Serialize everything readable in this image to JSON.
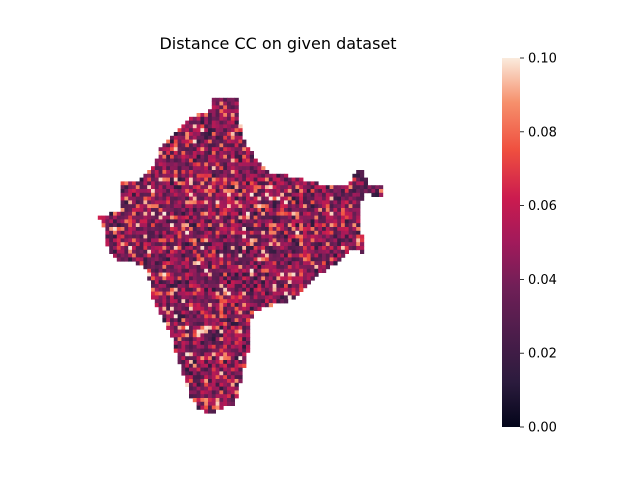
{
  "chart_data": {
    "type": "heatmap",
    "title": "Distance CC on given dataset",
    "xlabel": "",
    "ylabel": "",
    "axes_visible": false,
    "grid": false,
    "colormap": "rocket",
    "colorbar": {
      "range": [
        0.0,
        0.1
      ],
      "position": "right",
      "ticks": [
        "0.00",
        "0.02",
        "0.04",
        "0.06",
        "0.08",
        "0.10"
      ],
      "tick_values": [
        0.0,
        0.02,
        0.04,
        0.06,
        0.08,
        0.1
      ]
    },
    "value_distribution": {
      "typical_range": [
        0.02,
        0.06
      ],
      "peak_range": [
        0.08,
        0.1
      ],
      "masked": "outside the region (blank)"
    }
  }
}
